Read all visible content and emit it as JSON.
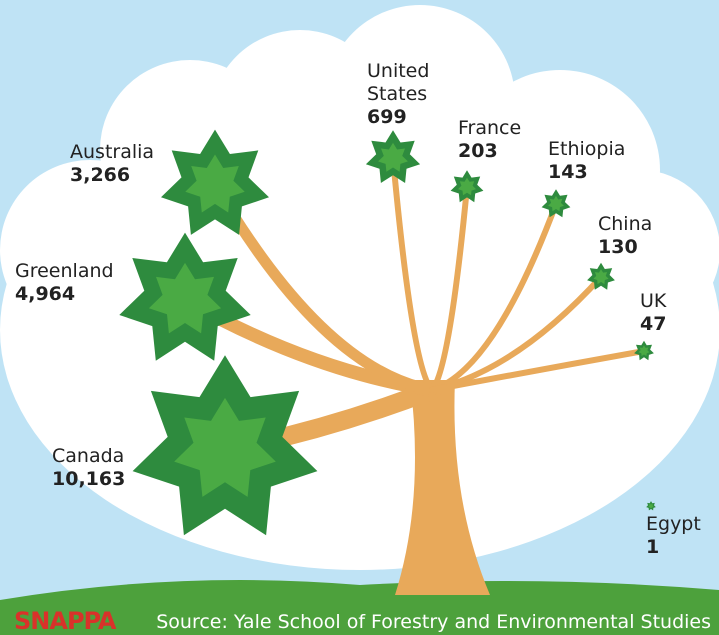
{
  "chart_data": {
    "type": "pictorial",
    "categories": [
      "Canada",
      "Greenland",
      "Australia",
      "United States",
      "France",
      "Ethiopia",
      "China",
      "UK",
      "Egypt"
    ],
    "values": [
      10163,
      4964,
      3266,
      699,
      203,
      143,
      130,
      47,
      1
    ],
    "value_labels": [
      "10,163",
      "4,964",
      "3,266",
      "699",
      "203",
      "143",
      "130",
      "47",
      "1"
    ],
    "color": "#2e8b3e",
    "source": "Source: Yale School of Forestry and Environmental Studies",
    "brand": "SNAPPA"
  }
}
